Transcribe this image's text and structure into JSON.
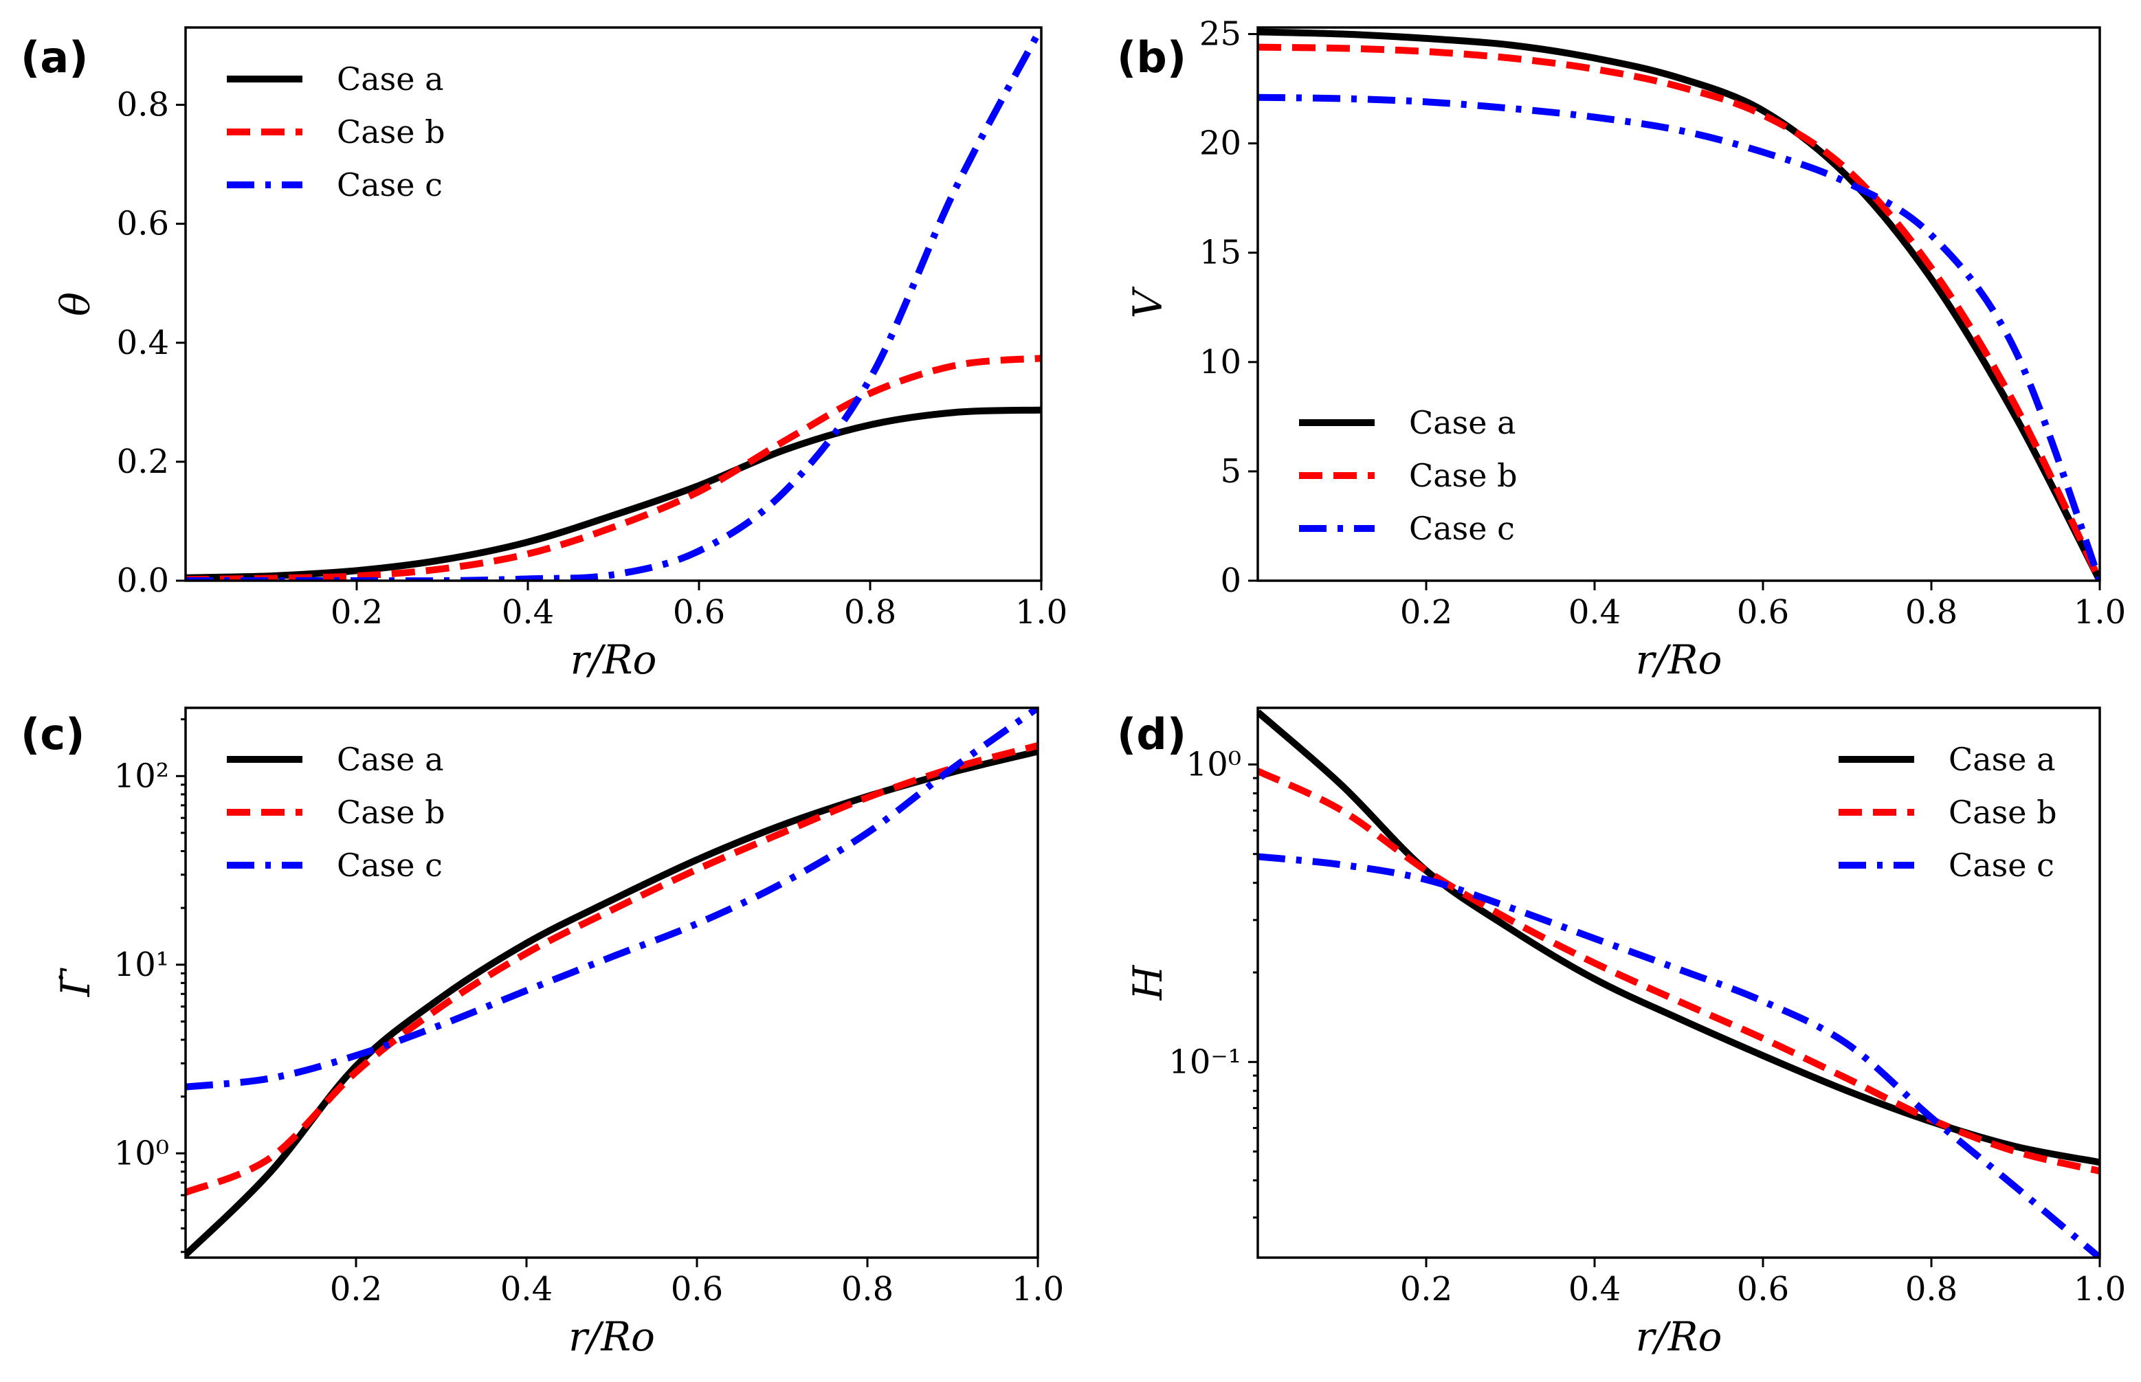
{
  "figure_label_style": "bold",
  "legend_entries": [
    "Case a",
    "Case b",
    "Case c"
  ],
  "series_colors": [
    "#000000",
    "#ff0000",
    "#0000ff"
  ],
  "series_dash": [
    "solid",
    "dashed",
    "dashdot"
  ],
  "chart_data": [
    {
      "panel": "(a)",
      "type": "line",
      "title": "",
      "xlabel": "r/Ro",
      "ylabel": "θ",
      "yscale": "linear",
      "xlim": [
        0.0,
        1.0
      ],
      "ylim": [
        0.0,
        0.93
      ],
      "xticks": [
        0.2,
        0.4,
        0.6,
        0.8,
        1.0
      ],
      "xtick_labels": [
        "0.2",
        "0.4",
        "0.6",
        "0.8",
        "1.0"
      ],
      "yticks": [
        0.0,
        0.2,
        0.4,
        0.6,
        0.8
      ],
      "ytick_labels": [
        "0.0",
        "0.2",
        "0.4",
        "0.6",
        "0.8"
      ],
      "legend_position": "top-left",
      "x": [
        0.0,
        0.1,
        0.2,
        0.3,
        0.4,
        0.5,
        0.6,
        0.7,
        0.8,
        0.9,
        1.0
      ],
      "series": [
        {
          "name": "Case a",
          "values": [
            0.005,
            0.008,
            0.017,
            0.035,
            0.065,
            0.11,
            0.16,
            0.22,
            0.262,
            0.283,
            0.287
          ]
        },
        {
          "name": "Case b",
          "values": [
            0.002,
            0.004,
            0.008,
            0.02,
            0.045,
            0.09,
            0.15,
            0.235,
            0.315,
            0.362,
            0.374
          ]
        },
        {
          "name": "Case c",
          "values": [
            0.0,
            0.0,
            0.0,
            0.0,
            0.003,
            0.01,
            0.05,
            0.15,
            0.34,
            0.66,
            0.93
          ]
        }
      ]
    },
    {
      "panel": "(b)",
      "type": "line",
      "title": "",
      "xlabel": "r/Ro",
      "ylabel": "V",
      "yscale": "linear",
      "xlim": [
        0.0,
        1.0
      ],
      "ylim": [
        0,
        25.3
      ],
      "xticks": [
        0.2,
        0.4,
        0.6,
        0.8,
        1.0
      ],
      "xtick_labels": [
        "0.2",
        "0.4",
        "0.6",
        "0.8",
        "1.0"
      ],
      "yticks": [
        0,
        5,
        10,
        15,
        20,
        25
      ],
      "ytick_labels": [
        "0",
        "5",
        "10",
        "15",
        "20",
        "25"
      ],
      "legend_position": "bottom-left",
      "x": [
        0.0,
        0.1,
        0.2,
        0.3,
        0.4,
        0.5,
        0.6,
        0.7,
        0.8,
        0.9,
        1.0
      ],
      "series": [
        {
          "name": "Case a",
          "values": [
            25.1,
            25.0,
            24.8,
            24.5,
            23.9,
            23.0,
            21.5,
            18.5,
            13.8,
            7.5,
            0.0
          ]
        },
        {
          "name": "Case b",
          "values": [
            24.4,
            24.35,
            24.2,
            23.9,
            23.4,
            22.6,
            21.3,
            18.8,
            14.3,
            8.0,
            0.0
          ]
        },
        {
          "name": "Case c",
          "values": [
            22.1,
            22.05,
            21.9,
            21.6,
            21.2,
            20.6,
            19.6,
            18.2,
            15.8,
            10.5,
            0.0
          ]
        }
      ]
    },
    {
      "panel": "(c)",
      "type": "line",
      "title": "",
      "xlabel": "r/Ro",
      "ylabel": "Γ̇",
      "yscale": "log",
      "xlim": [
        0.0,
        1.0
      ],
      "ylim": [
        0.28,
        230
      ],
      "xticks": [
        0.2,
        0.4,
        0.6,
        0.8,
        1.0
      ],
      "xtick_labels": [
        "0.2",
        "0.4",
        "0.6",
        "0.8",
        "1.0"
      ],
      "yticks": [
        1,
        10,
        100
      ],
      "ytick_labels": [
        "10⁰",
        "10¹",
        "10²"
      ],
      "legend_position": "top-left",
      "x": [
        0.0,
        0.1,
        0.2,
        0.3,
        0.4,
        0.5,
        0.6,
        0.7,
        0.8,
        0.9,
        1.0
      ],
      "series": [
        {
          "name": "Case a",
          "values": [
            0.29,
            0.8,
            2.9,
            6.7,
            13.0,
            22.0,
            36.0,
            55.0,
            78.0,
            105.0,
            135.0
          ]
        },
        {
          "name": "Case b",
          "values": [
            0.62,
            0.95,
            2.7,
            6.0,
            11.5,
            19.5,
            32.0,
            50.0,
            77.0,
            110.0,
            145.0
          ]
        },
        {
          "name": "Case c",
          "values": [
            2.25,
            2.5,
            3.3,
            4.8,
            7.3,
            11.0,
            16.5,
            27.0,
            50.0,
            110.0,
            230.0
          ]
        }
      ]
    },
    {
      "panel": "(d)",
      "type": "line",
      "title": "",
      "xlabel": "r/Ro",
      "ylabel": "H",
      "yscale": "log",
      "xlim": [
        0.0,
        1.0
      ],
      "ylim": [
        0.022,
        1.55
      ],
      "xticks": [
        0.2,
        0.4,
        0.6,
        0.8,
        1.0
      ],
      "xtick_labels": [
        "0.2",
        "0.4",
        "0.6",
        "0.8",
        "1.0"
      ],
      "yticks": [
        0.1,
        1
      ],
      "ytick_labels": [
        "10⁻¹",
        "10⁰"
      ],
      "legend_position": "top-right",
      "x": [
        0.0,
        0.1,
        0.2,
        0.3,
        0.4,
        0.5,
        0.6,
        0.7,
        0.8,
        0.9,
        1.0
      ],
      "series": [
        {
          "name": "Case a",
          "values": [
            1.5,
            0.85,
            0.44,
            0.28,
            0.19,
            0.14,
            0.105,
            0.08,
            0.063,
            0.052,
            0.046
          ]
        },
        {
          "name": "Case b",
          "values": [
            0.95,
            0.7,
            0.44,
            0.3,
            0.215,
            0.16,
            0.12,
            0.088,
            0.064,
            0.05,
            0.043
          ]
        },
        {
          "name": "Case c",
          "values": [
            0.49,
            0.46,
            0.41,
            0.33,
            0.26,
            0.205,
            0.16,
            0.115,
            0.065,
            0.038,
            0.022
          ]
        }
      ]
    }
  ]
}
